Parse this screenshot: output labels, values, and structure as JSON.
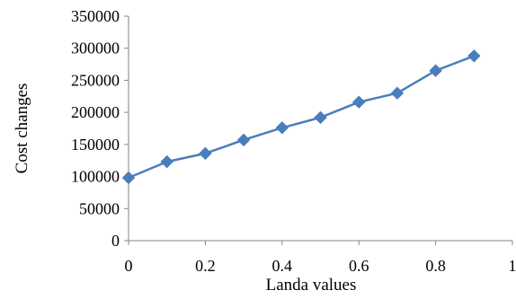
{
  "chart_data": {
    "type": "line",
    "title": "",
    "xlabel": "Landa values",
    "ylabel": "Cost changes",
    "xlim": [
      0,
      1
    ],
    "ylim": [
      0,
      350000
    ],
    "x_ticks": [
      0,
      0.2,
      0.4,
      0.6,
      0.8,
      1
    ],
    "x_tick_labels": [
      "0",
      "0.2",
      "0.4",
      "0.6",
      "0.8",
      "1"
    ],
    "y_ticks": [
      0,
      50000,
      100000,
      150000,
      200000,
      250000,
      300000,
      350000
    ],
    "y_tick_labels": [
      "0",
      "50000",
      "100000",
      "150000",
      "200000",
      "250000",
      "300000",
      "350000"
    ],
    "grid": false,
    "legend": "none",
    "marker": "diamond",
    "series": [
      {
        "color": "#4a7ebb",
        "x": [
          0,
          0.1,
          0.2,
          0.3,
          0.4,
          0.5,
          0.6,
          0.7,
          0.8,
          0.9
        ],
        "y": [
          98000,
          123000,
          136000,
          157000,
          176000,
          192000,
          216000,
          230000,
          265000,
          288000
        ]
      }
    ]
  }
}
